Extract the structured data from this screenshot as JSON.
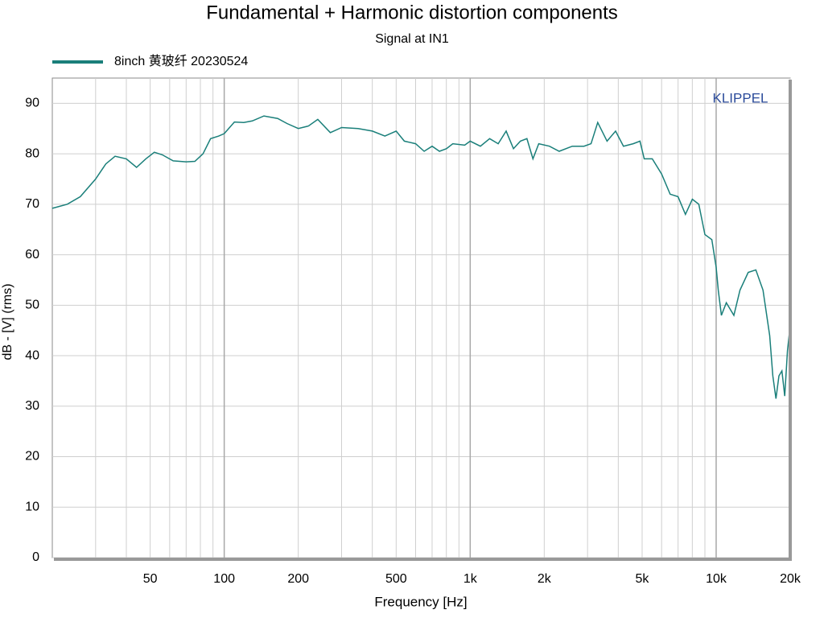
{
  "chart_data": {
    "type": "line",
    "title": "Fundamental + Harmonic distortion components",
    "subtitle": "Signal at IN1",
    "xlabel": "Frequency [Hz]",
    "ylabel": "dB - [V]  (rms)",
    "annotation": "KLIPPEL",
    "xscale": "log",
    "grid": true,
    "legend": "top-left",
    "xlim": [
      20,
      20000
    ],
    "ylim": [
      0,
      95
    ],
    "xticks": [
      50,
      100,
      200,
      500,
      {
        "value": 1000,
        "label": "1k"
      },
      {
        "value": 2000,
        "label": "2k"
      },
      {
        "value": 5000,
        "label": "5k"
      },
      {
        "value": 10000,
        "label": "10k"
      },
      {
        "value": 20000,
        "label": "20k"
      }
    ],
    "x_minor_grid": [
      30,
      40,
      60,
      70,
      80,
      90,
      300,
      400,
      600,
      700,
      800,
      900,
      3000,
      4000,
      6000,
      7000,
      8000,
      9000
    ],
    "yticks": [
      0,
      10,
      20,
      30,
      40,
      50,
      60,
      70,
      80,
      90
    ],
    "series": [
      {
        "name": "8inch 黄玻纤 20230524",
        "color": "#1a7f7a",
        "x": [
          20,
          23,
          26,
          30,
          33,
          36,
          40,
          44,
          48,
          52,
          56,
          62,
          70,
          76,
          82,
          88,
          95,
          100,
          110,
          120,
          130,
          145,
          165,
          180,
          200,
          220,
          240,
          270,
          300,
          350,
          400,
          450,
          500,
          540,
          600,
          650,
          700,
          750,
          800,
          850,
          950,
          1000,
          1100,
          1200,
          1300,
          1400,
          1500,
          1600,
          1700,
          1800,
          1900,
          2100,
          2300,
          2600,
          2900,
          3100,
          3300,
          3600,
          3900,
          4200,
          4600,
          4900,
          5100,
          5500,
          6000,
          6500,
          7000,
          7500,
          8000,
          8500,
          9000,
          9600,
          10000,
          10200,
          10500,
          11000,
          11800,
          12500,
          13500,
          14500,
          15500,
          16500,
          17000,
          17500,
          18000,
          18500,
          19000,
          19500,
          20000
        ],
        "values": [
          69.2,
          70,
          71.5,
          75,
          78,
          79.5,
          79,
          77.3,
          79,
          80.3,
          79.8,
          78.6,
          78.4,
          78.5,
          80,
          83,
          83.5,
          84,
          86.3,
          86.2,
          86.5,
          87.5,
          87,
          86,
          85,
          85.5,
          86.8,
          84.2,
          85.2,
          85,
          84.5,
          83.5,
          84.5,
          82.5,
          82,
          80.5,
          81.5,
          80.5,
          81,
          82,
          81.7,
          82.5,
          81.5,
          83,
          82,
          84.5,
          81,
          82.5,
          83,
          79,
          82,
          81.5,
          80.5,
          81.5,
          81.5,
          82,
          86.2,
          82.5,
          84.5,
          81.5,
          82,
          82.5,
          79,
          79,
          76,
          72,
          71.5,
          68,
          71,
          70,
          64,
          63,
          57.5,
          53,
          48,
          50.5,
          48,
          53,
          56.5,
          57,
          53,
          44,
          36,
          31.5,
          36,
          37,
          32,
          41,
          46
        ]
      }
    ]
  }
}
